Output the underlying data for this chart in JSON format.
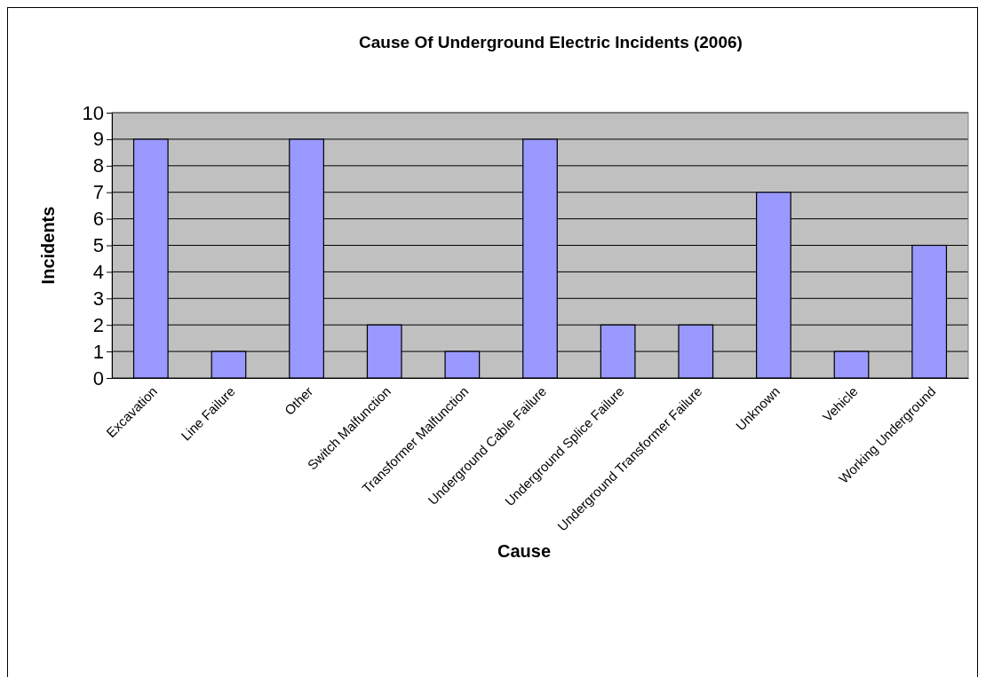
{
  "chart_data": {
    "type": "bar",
    "title": "Cause Of Underground Electric Incidents (2006)",
    "xlabel": "Cause",
    "ylabel": "Incidents",
    "categories": [
      "Excavation",
      "Line Failure",
      "Other",
      "Switch Malfunction",
      "Transformer Malfunction",
      "Underground Cable Failure",
      "Underground Splice Failure",
      "Underground Transformer Failure",
      "Unknown",
      "Vehicle",
      "Working Underground"
    ],
    "values": [
      9,
      1,
      9,
      2,
      1,
      9,
      2,
      2,
      7,
      1,
      5
    ],
    "color": "#9999ff",
    "ylim": [
      0,
      10
    ],
    "yticks": [
      0,
      1,
      2,
      3,
      4,
      5,
      6,
      7,
      8,
      9,
      10
    ],
    "grid": "y"
  }
}
